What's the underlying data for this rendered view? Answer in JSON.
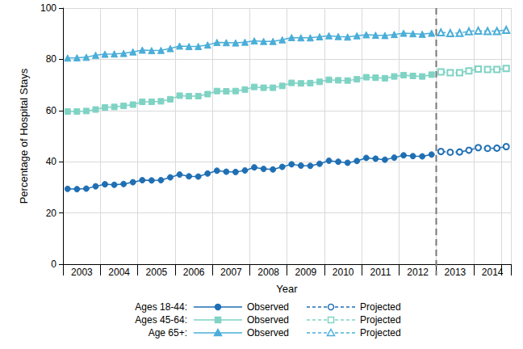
{
  "chart_data": {
    "type": "line",
    "x_label": "Year",
    "y_label": "Percentage of Hospital Stays",
    "categories": [
      null,
      null,
      "2003",
      null,
      null,
      null,
      "2004",
      null,
      null,
      null,
      "2005",
      null,
      null,
      null,
      "2006",
      null,
      null,
      null,
      "2007",
      null,
      null,
      null,
      "2008",
      null,
      null,
      null,
      "2009",
      null,
      null,
      null,
      "2010",
      null,
      null,
      null,
      "2011",
      null,
      null,
      null,
      "2012",
      null,
      null,
      null,
      "2013",
      null,
      null,
      null,
      "2014",
      null
    ],
    "ylim": [
      0,
      100
    ],
    "yticks": [
      0,
      20,
      40,
      60,
      80,
      100
    ],
    "grid": true,
    "legend": "bottom",
    "series": [
      {
        "group": "Ages 18-44:",
        "name": "Observed",
        "color": "#1f6fb4",
        "marker": "circle",
        "line_style": "solid",
        "values": [
          29.4,
          29.3,
          29.5,
          30.4,
          31.2,
          31.0,
          31.3,
          32.0,
          32.8,
          32.7,
          32.8,
          33.9,
          35.0,
          34.3,
          34.2,
          35.4,
          36.5,
          36.1,
          36.0,
          36.6,
          37.8,
          37.2,
          37.0,
          38.0,
          39.0,
          38.5,
          38.4,
          39.2,
          40.4,
          40.0,
          39.6,
          40.3,
          41.5,
          41.2,
          40.8,
          41.6,
          42.5,
          42.2,
          42.1,
          42.8,
          null,
          null,
          null,
          null,
          null,
          null,
          null,
          null
        ]
      },
      {
        "group": "Ages 18-44:",
        "name": "Projected",
        "color": "#1f6fb4",
        "marker": "emptyCircle",
        "line_style": "dashed",
        "values": [
          null,
          null,
          null,
          null,
          null,
          null,
          null,
          null,
          null,
          null,
          null,
          null,
          null,
          null,
          null,
          null,
          null,
          null,
          null,
          null,
          null,
          null,
          null,
          null,
          null,
          null,
          null,
          null,
          null,
          null,
          null,
          null,
          null,
          null,
          null,
          null,
          null,
          null,
          null,
          null,
          44.0,
          43.7,
          43.8,
          44.5,
          45.5,
          45.2,
          45.3,
          45.9
        ]
      },
      {
        "group": "Ages 45-64:",
        "name": "Observed",
        "color": "#7fd3c4",
        "marker": "rect",
        "line_style": "solid",
        "values": [
          59.6,
          59.6,
          59.8,
          60.4,
          61.2,
          61.4,
          61.8,
          62.3,
          63.4,
          63.4,
          63.6,
          64.4,
          65.8,
          65.6,
          65.6,
          66.4,
          67.6,
          67.5,
          67.6,
          68.2,
          69.2,
          68.9,
          68.9,
          69.6,
          70.8,
          70.6,
          70.7,
          71.2,
          72.0,
          71.8,
          71.7,
          72.2,
          73.0,
          72.8,
          72.6,
          73.3,
          73.8,
          73.5,
          73.3,
          74.0,
          null,
          null,
          null,
          null,
          null,
          null,
          null,
          null
        ]
      },
      {
        "group": "Ages 45-64:",
        "name": "Projected",
        "color": "#7fd3c4",
        "marker": "emptyRect",
        "line_style": "dashed",
        "values": [
          null,
          null,
          null,
          null,
          null,
          null,
          null,
          null,
          null,
          null,
          null,
          null,
          null,
          null,
          null,
          null,
          null,
          null,
          null,
          null,
          null,
          null,
          null,
          null,
          null,
          null,
          null,
          null,
          null,
          null,
          null,
          null,
          null,
          null,
          null,
          null,
          null,
          null,
          null,
          null,
          75.1,
          74.8,
          74.8,
          75.5,
          76.2,
          76.0,
          76.0,
          76.4
        ]
      },
      {
        "group": "Age 65+:",
        "name": "Observed",
        "color": "#4aaed8",
        "marker": "triangle",
        "line_style": "solid",
        "values": [
          80.5,
          80.6,
          80.8,
          81.6,
          82.0,
          82.1,
          82.3,
          82.9,
          83.6,
          83.4,
          83.5,
          84.2,
          85.2,
          85.0,
          85.0,
          85.6,
          86.6,
          86.5,
          86.4,
          86.7,
          87.2,
          87.0,
          87.0,
          87.6,
          88.5,
          88.4,
          88.4,
          88.8,
          89.2,
          88.9,
          88.7,
          89.2,
          89.6,
          89.4,
          89.3,
          89.7,
          90.2,
          90.0,
          89.8,
          90.2,
          null,
          null,
          null,
          null,
          null,
          null,
          null,
          null
        ]
      },
      {
        "group": "Age 65+:",
        "name": "Projected",
        "color": "#4aaed8",
        "marker": "emptyTriangle",
        "line_style": "dashed",
        "values": [
          null,
          null,
          null,
          null,
          null,
          null,
          null,
          null,
          null,
          null,
          null,
          null,
          null,
          null,
          null,
          null,
          null,
          null,
          null,
          null,
          null,
          null,
          null,
          null,
          null,
          null,
          null,
          null,
          null,
          null,
          null,
          null,
          null,
          null,
          null,
          null,
          null,
          null,
          null,
          null,
          90.5,
          90.2,
          90.3,
          90.9,
          91.2,
          91.0,
          91.0,
          91.5
        ]
      }
    ]
  }
}
